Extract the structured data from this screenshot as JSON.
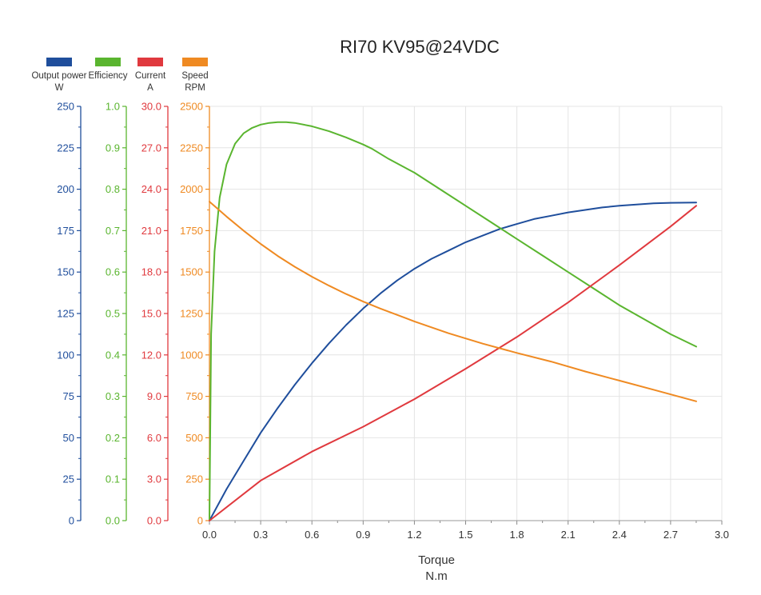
{
  "chart_data": {
    "type": "line",
    "title": "RI70 KV95@24VDC",
    "xlabel": "Torque",
    "xunit": "N.m",
    "xlim": [
      0,
      3.0
    ],
    "xticks": [
      0.0,
      0.3,
      0.6,
      0.9,
      1.2,
      1.5,
      1.8,
      2.1,
      2.4,
      2.7,
      3.0
    ],
    "x_tick_decimals": 1,
    "grid": true,
    "legend_position": "top-left",
    "axes": [
      {
        "id": "power",
        "name": "Output power",
        "unit": "W",
        "color": "#1f4e9c",
        "ylim": [
          0,
          250
        ],
        "step": 25,
        "decimals": 0
      },
      {
        "id": "efficiency",
        "name": "Efficiency",
        "unit": "",
        "color": "#5ab52f",
        "ylim": [
          0,
          1.0
        ],
        "step": 0.1,
        "decimals": 1
      },
      {
        "id": "current",
        "name": "Current",
        "unit": "A",
        "color": "#e0393e",
        "ylim": [
          0,
          30
        ],
        "step": 3,
        "decimals": 1
      },
      {
        "id": "speed",
        "name": "Speed",
        "unit": "RPM",
        "color": "#ef8a22",
        "ylim": [
          0,
          2500
        ],
        "step": 250,
        "decimals": 0
      }
    ],
    "series": [
      {
        "name": "Output power",
        "axis": "power",
        "color": "#1f4e9c",
        "x": [
          0,
          0.1,
          0.2,
          0.3,
          0.4,
          0.5,
          0.6,
          0.7,
          0.8,
          0.9,
          1.0,
          1.1,
          1.2,
          1.3,
          1.4,
          1.5,
          1.6,
          1.7,
          1.8,
          1.9,
          2.0,
          2.1,
          2.2,
          2.3,
          2.4,
          2.5,
          2.6,
          2.7,
          2.85
        ],
        "y": [
          0,
          19,
          36,
          53,
          68,
          82,
          95,
          107,
          118,
          128,
          137,
          145,
          152,
          158,
          163,
          168,
          172,
          176,
          179,
          182,
          184,
          186,
          187.5,
          189,
          190,
          190.8,
          191.5,
          191.8,
          192
        ]
      },
      {
        "name": "Efficiency",
        "axis": "efficiency",
        "color": "#5ab52f",
        "x": [
          0,
          0.01,
          0.03,
          0.06,
          0.1,
          0.15,
          0.2,
          0.25,
          0.3,
          0.35,
          0.4,
          0.45,
          0.5,
          0.6,
          0.7,
          0.8,
          0.9,
          0.95,
          1.05,
          1.2,
          1.35,
          1.5,
          1.65,
          1.8,
          1.95,
          2.1,
          2.25,
          2.4,
          2.55,
          2.7,
          2.85
        ],
        "y": [
          0,
          0.45,
          0.65,
          0.78,
          0.86,
          0.91,
          0.935,
          0.948,
          0.956,
          0.96,
          0.962,
          0.962,
          0.96,
          0.952,
          0.94,
          0.925,
          0.908,
          0.898,
          0.873,
          0.84,
          0.8,
          0.76,
          0.72,
          0.68,
          0.64,
          0.6,
          0.56,
          0.52,
          0.485,
          0.45,
          0.42
        ]
      },
      {
        "name": "Current",
        "axis": "current",
        "color": "#e0393e",
        "x": [
          0,
          0.3,
          0.6,
          0.9,
          1.2,
          1.5,
          1.8,
          2.1,
          2.4,
          2.7,
          2.85
        ],
        "y": [
          0,
          2.9,
          5.0,
          6.8,
          8.8,
          11.0,
          13.3,
          15.8,
          18.5,
          21.3,
          22.8
        ]
      },
      {
        "name": "Speed",
        "axis": "speed",
        "color": "#ef8a22",
        "x": [
          0,
          0.1,
          0.2,
          0.3,
          0.4,
          0.5,
          0.6,
          0.7,
          0.8,
          0.9,
          1.0,
          1.2,
          1.4,
          1.6,
          1.8,
          2.0,
          2.2,
          2.4,
          2.6,
          2.85
        ],
        "y": [
          1925,
          1835,
          1750,
          1670,
          1597,
          1532,
          1472,
          1418,
          1368,
          1322,
          1280,
          1202,
          1131,
          1068,
          1012,
          960,
          900,
          845,
          790,
          720
        ]
      }
    ]
  }
}
